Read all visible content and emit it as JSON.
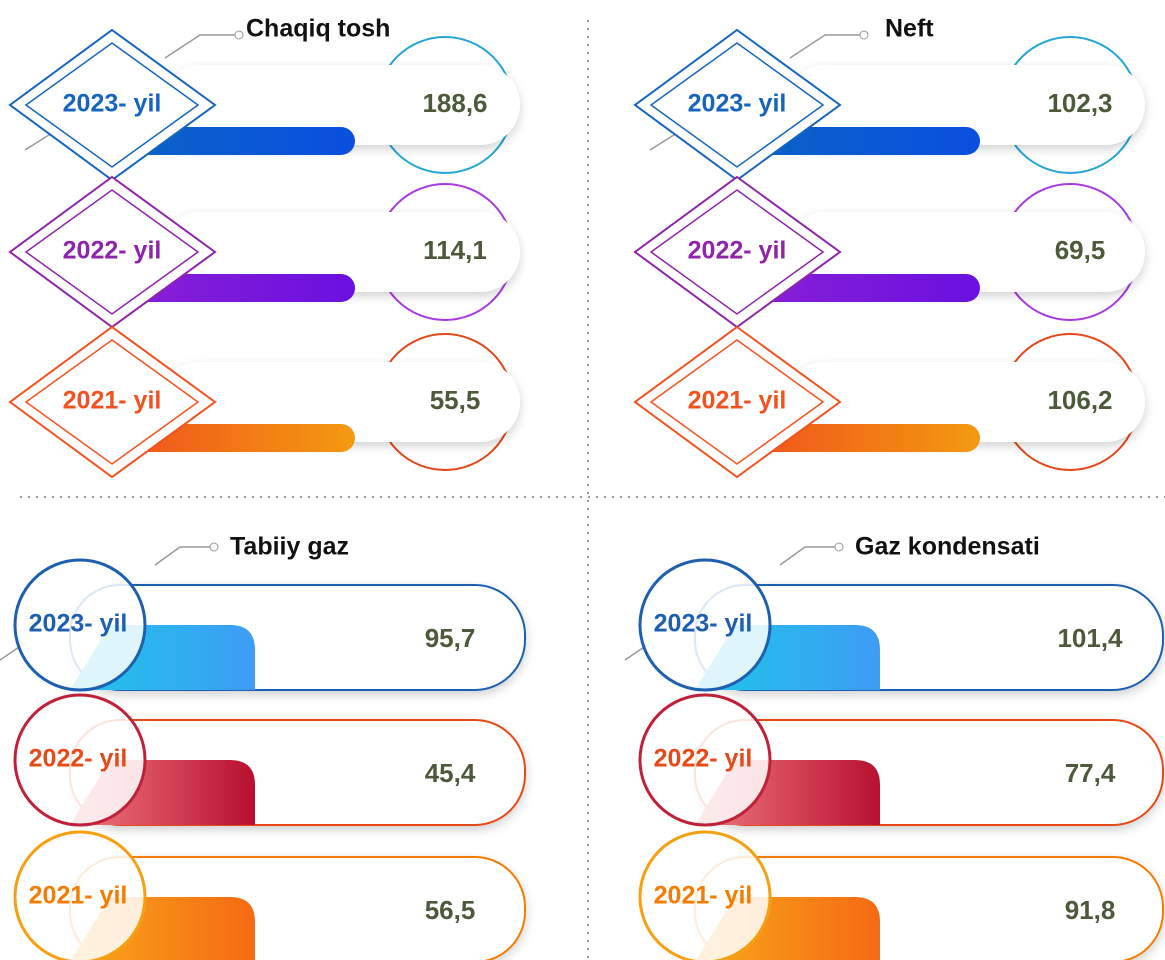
{
  "panels": [
    {
      "title": "Chaqiq tosh",
      "rows": [
        {
          "year": "2023- yil",
          "value": "188,6"
        },
        {
          "year": "2022- yil",
          "value": "114,1"
        },
        {
          "year": "2021- yil",
          "value": "55,5"
        }
      ]
    },
    {
      "title": "Neft",
      "rows": [
        {
          "year": "2023- yil",
          "value": "102,3"
        },
        {
          "year": "2022- yil",
          "value": "69,5"
        },
        {
          "year": "2021- yil",
          "value": "106,2"
        }
      ]
    },
    {
      "title": "Tabiiy gaz",
      "rows": [
        {
          "year": "2023- yil",
          "value": "95,7"
        },
        {
          "year": "2022- yil",
          "value": "45,4"
        },
        {
          "year": "2021- yil",
          "value": "56,5"
        }
      ]
    },
    {
      "title": "Gaz kondensati",
      "rows": [
        {
          "year": "2023- yil",
          "value": "101,4"
        },
        {
          "year": "2022- yil",
          "value": "77,4"
        },
        {
          "year": "2021- yil",
          "value": "91,8"
        }
      ]
    }
  ]
}
